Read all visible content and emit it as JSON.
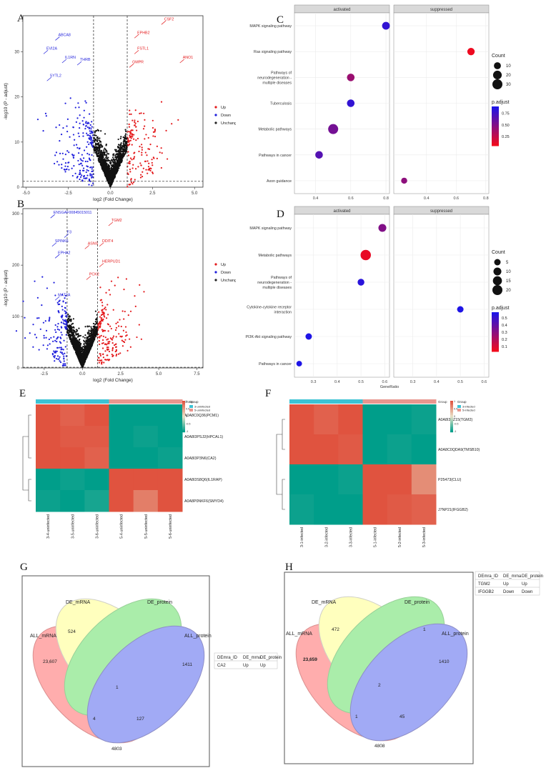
{
  "panel_labels": [
    "A",
    "B",
    "C",
    "D",
    "E",
    "F",
    "G",
    "H"
  ],
  "chart_data": [
    {
      "id": "A",
      "type": "scatter",
      "xlabel": "log2 (Fold Change)",
      "ylabel": "-log10 (P - adjust)",
      "xlim": [
        -5.2,
        5.5
      ],
      "ylim": [
        0,
        38
      ],
      "xticks": [
        "-5.0",
        "-2.5",
        "0.0",
        "2.5",
        "5.0"
      ],
      "xtick_values": [
        -5,
        -2.5,
        0,
        2.5,
        5
      ],
      "yticks": [
        "0",
        "10",
        "20",
        "30"
      ],
      "ytick_values": [
        0,
        10,
        20,
        30
      ],
      "vlines": [
        -1,
        1
      ],
      "hline": 1.3,
      "legend": [
        {
          "label": "Up",
          "color": "#e41a1c"
        },
        {
          "label": "Down",
          "color": "#1f1fdc"
        },
        {
          "label": "Unchanged",
          "color": "#222222"
        }
      ],
      "up_labels": [
        {
          "text": "CSF2",
          "x": 3.2,
          "y": 37.0
        },
        {
          "text": "EPHB2",
          "x": 1.6,
          "y": 34.0
        },
        {
          "text": "FSTL1",
          "x": 1.6,
          "y": 30.5
        },
        {
          "text": "ANO1",
          "x": 4.3,
          "y": 28.5
        },
        {
          "text": "GMPR",
          "x": 1.3,
          "y": 27.5
        }
      ],
      "down_labels": [
        {
          "text": "ABCA8",
          "x": -3.1,
          "y": 33.5
        },
        {
          "text": "EVI2A",
          "x": -3.8,
          "y": 30.5
        },
        {
          "text": "IL1RN",
          "x": -2.7,
          "y": 28.5
        },
        {
          "text": "THRB",
          "x": -1.8,
          "y": 28.0
        },
        {
          "text": "SYTL2",
          "x": -3.6,
          "y": 24.5
        }
      ]
    },
    {
      "id": "B",
      "type": "scatter",
      "xlabel": "log2 (Fold Change)",
      "ylabel": "-log10 (P - adjust)",
      "xlim": [
        -3.9,
        7.9
      ],
      "ylim": [
        0,
        310
      ],
      "xticks": [
        "-2.5",
        "0.0",
        "2.5",
        "5.0",
        "7.5"
      ],
      "xtick_values": [
        -2.5,
        0,
        2.5,
        5,
        7.5
      ],
      "yticks": [
        "0",
        "100",
        "200",
        "300"
      ],
      "ytick_values": [
        0,
        100,
        200,
        300
      ],
      "vlines": [
        -1,
        1
      ],
      "hline": 1.3,
      "legend": [
        {
          "label": "Up",
          "color": "#e41a1c"
        },
        {
          "label": "Down",
          "color": "#1f1fdc"
        },
        {
          "label": "Unchanged",
          "color": "#222222"
        }
      ],
      "up_labels": [
        {
          "text": "TGM2",
          "x": 1.9,
          "y": 285
        },
        {
          "text": "DDIT4",
          "x": 1.3,
          "y": 245
        },
        {
          "text": "ASNS",
          "x": 0.35,
          "y": 240
        },
        {
          "text": "HERPUD1",
          "x": 1.3,
          "y": 205
        },
        {
          "text": "PCK2",
          "x": 0.45,
          "y": 180
        }
      ],
      "down_labels": [
        {
          "text": "ENSGAF00845015011",
          "x": -1.9,
          "y": 300
        },
        {
          "text": "F3",
          "x": -1.0,
          "y": 262
        },
        {
          "text": "SPINK6",
          "x": -1.8,
          "y": 245
        },
        {
          "text": "EPHA2",
          "x": -1.6,
          "y": 222
        },
        {
          "text": "MAT2A",
          "x": -1.6,
          "y": 140
        }
      ]
    },
    {
      "id": "C",
      "type": "scatter",
      "facets": [
        "activated",
        "suppressed"
      ],
      "categories": [
        "MAPK signaling pathway",
        "Ras signaling pathway",
        "Pathways of neurodegeneration - multiple diseases",
        "Tuberculosis",
        "Metabolic pathways",
        "Pathways in cancer",
        "Axon guidance"
      ],
      "facet_xlim": [
        [
          0.28,
          0.82
        ],
        [
          0.18,
          0.82
        ]
      ],
      "facet_xticks": [
        [
          "0.4",
          "0.6",
          "0.8"
        ],
        [
          "0.4",
          "0.6",
          "0.8"
        ]
      ],
      "facet_xtick_values": [
        [
          0.4,
          0.6,
          0.8
        ],
        [
          0.4,
          0.6,
          0.8
        ]
      ],
      "points": [
        {
          "category": "MAPK signaling pathway",
          "facet": 0,
          "x": 0.8,
          "count": 14,
          "padj": 0.82
        },
        {
          "category": "Ras signaling pathway",
          "facet": 1,
          "x": 0.7,
          "count": 12,
          "padj": 0.06
        },
        {
          "category": "Pathways of neurodegeneration - multiple diseases",
          "facet": 0,
          "x": 0.6,
          "count": 13,
          "padj": 0.4
        },
        {
          "category": "Tuberculosis",
          "facet": 0,
          "x": 0.6,
          "count": 13,
          "padj": 0.82
        },
        {
          "category": "Metabolic pathways",
          "facet": 0,
          "x": 0.5,
          "count": 30,
          "padj": 0.55
        },
        {
          "category": "Pathways in cancer",
          "facet": 0,
          "x": 0.42,
          "count": 13,
          "padj": 0.68
        },
        {
          "category": "Axon guidance",
          "facet": 1,
          "x": 0.25,
          "count": 6,
          "padj": 0.45
        }
      ],
      "legend_count_title": "Count",
      "legend_count_values": [
        10,
        20,
        30
      ],
      "legend_color_title": "p.adjust",
      "legend_color_ticks": [
        "0.75",
        "0.50",
        "0.25"
      ],
      "legend_color_values": [
        0.75,
        0.5,
        0.25
      ],
      "padj_range": [
        0.05,
        0.9
      ],
      "xlabel": ""
    },
    {
      "id": "D",
      "type": "scatter",
      "facets": [
        "activated",
        "suppressed"
      ],
      "categories": [
        "MAPK signaling pathway",
        "Metabolic pathways",
        "Pathways of neurodegeneration - multiple diseases",
        "Cytokine-cytokine receptor interaction",
        "PI3K-Akt signaling pathway",
        "Pathways in cancer"
      ],
      "facet_xlim": [
        [
          0.22,
          0.62
        ],
        [
          0.22,
          0.62
        ]
      ],
      "facet_xticks": [
        [
          "0.3",
          "0.4",
          "0.5",
          "0.6"
        ],
        [
          "0.3",
          "0.4",
          "0.5",
          "0.6"
        ]
      ],
      "facet_xtick_values": [
        [
          0.3,
          0.4,
          0.5,
          0.6
        ],
        [
          0.3,
          0.4,
          0.5,
          0.6
        ]
      ],
      "points": [
        {
          "category": "MAPK signaling pathway",
          "facet": 0,
          "x": 0.59,
          "count": 10,
          "padj": 0.32
        },
        {
          "category": "Metabolic pathways",
          "facet": 0,
          "x": 0.52,
          "count": 22,
          "padj": 0.05
        },
        {
          "category": "Pathways of neurodegeneration - multiple diseases",
          "facet": 0,
          "x": 0.5,
          "count": 6,
          "padj": 0.55
        },
        {
          "category": "Cytokine-cytokine receptor interaction",
          "facet": 1,
          "x": 0.5,
          "count": 5,
          "padj": 0.58
        },
        {
          "category": "PI3K-Akt signaling pathway",
          "facet": 0,
          "x": 0.28,
          "count": 5,
          "padj": 0.58
        },
        {
          "category": "Pathways in cancer",
          "facet": 0,
          "x": 0.24,
          "count": 3,
          "padj": 0.6
        }
      ],
      "legend_count_title": "Count",
      "legend_count_values": [
        5,
        10,
        15,
        20
      ],
      "legend_color_title": "p.adjust",
      "legend_color_ticks": [
        "0.5",
        "0.4",
        "0.3",
        "0.2",
        "0.1"
      ],
      "legend_color_values": [
        0.5,
        0.4,
        0.3,
        0.2,
        0.1
      ],
      "padj_range": [
        0.03,
        0.58
      ],
      "xlabel": "GeneRatio"
    },
    {
      "id": "E",
      "type": "heatmap",
      "rows": [
        "A0A8C0Q36(PCM1)",
        "A0A8I3PSJ2(HPCAL1)",
        "A0A8I3P3N6(CA2)",
        "A0A8I3S8Q6(IL1RAP)",
        "A0A8P0NKF6(SMYD4)"
      ],
      "columns": [
        "3-4-uninfected",
        "3-5-uninfected",
        "3-6-uninfected",
        "5-4-uninfected",
        "5-5-uninfected",
        "5-6-uninfected"
      ],
      "groups": [
        "3-uninfected",
        "3-uninfected",
        "3-uninfected",
        "5-uninfected",
        "5-uninfected",
        "5-uninfected"
      ],
      "values": [
        [
          1.0,
          0.9,
          1.0,
          -1.0,
          -1.0,
          -1.0
        ],
        [
          1.0,
          0.95,
          0.95,
          -1.0,
          -0.95,
          -1.0
        ],
        [
          1.0,
          1.0,
          0.9,
          -1.0,
          -1.0,
          -0.95
        ],
        [
          -1.0,
          -0.95,
          -1.0,
          1.0,
          1.0,
          1.0
        ],
        [
          -0.95,
          -1.0,
          -0.9,
          1.0,
          0.7,
          1.0
        ]
      ],
      "legend_title": "Group",
      "legend_items": [
        "3-uninfected",
        "5-uninfected"
      ],
      "scale_ticks": [
        "1",
        "0.5",
        "0",
        "-0.5",
        "-1"
      ],
      "group_label": "Group"
    },
    {
      "id": "F",
      "type": "heatmap",
      "rows": [
        "A0A8I3PZ15(TGM2)",
        "A0A8C0QDA9(TMSB10)",
        "P25473(CLU)",
        "J7NP21(IFGGB2)"
      ],
      "columns": [
        "3-1-infected",
        "3-2-infected",
        "3-3-infected",
        "5-1-infected",
        "5-2-infected",
        "5-3-infected"
      ],
      "groups": [
        "3-infected",
        "3-infected",
        "3-infected",
        "5-infected",
        "5-infected",
        "5-infected"
      ],
      "values": [
        [
          1.0,
          0.9,
          1.0,
          -1.0,
          -1.0,
          -0.95
        ],
        [
          1.0,
          1.0,
          0.95,
          -1.0,
          -0.95,
          -1.0
        ],
        [
          -1.0,
          -1.0,
          -0.95,
          1.0,
          1.0,
          0.6
        ],
        [
          -0.95,
          -1.0,
          -1.0,
          1.0,
          0.95,
          0.9
        ]
      ],
      "legend_title": "Group",
      "legend_items": [
        "3-infected",
        "5-infected"
      ],
      "scale_ticks": [
        "1",
        "0.5",
        "0",
        "-0.5",
        "-1"
      ],
      "group_label": "Group"
    }
  ],
  "venn_g": {
    "sets": [
      "DE_mRNA",
      "DE_protein",
      "ALL_mRNA",
      "ALL_protein"
    ],
    "regions": {
      "all_mrna_only": "23,607",
      "de_mrna_all_mrna": "524",
      "de_protein_only": "",
      "all_protein_only": "1411",
      "center": "1",
      "left_lower": "4",
      "right_lower": "127",
      "bottom": "4803"
    },
    "table": {
      "headers": [
        "DEmra_ID",
        "DE_mrna",
        "DE_protein"
      ],
      "rows": [
        [
          "CA2",
          "Up",
          "Up"
        ]
      ]
    }
  },
  "venn_h": {
    "sets": [
      "DE_mRNA",
      "DE_protein",
      "ALL_mRNA",
      "ALL_protein"
    ],
    "regions": {
      "all_mrna_only": "23,659",
      "de_mrna_all_mrna": "472",
      "de_protein_only": "1",
      "all_protein_only": "1410",
      "center": "2",
      "left_lower": "1",
      "right_lower": "45",
      "bottom": "4808"
    },
    "table": {
      "headers": [
        "DEmra_ID",
        "DE_mrna",
        "DE_protein"
      ],
      "rows": [
        [
          "TGM2",
          "Up",
          "Up"
        ],
        [
          "IFGGB2",
          "Down",
          "Down"
        ]
      ]
    }
  }
}
